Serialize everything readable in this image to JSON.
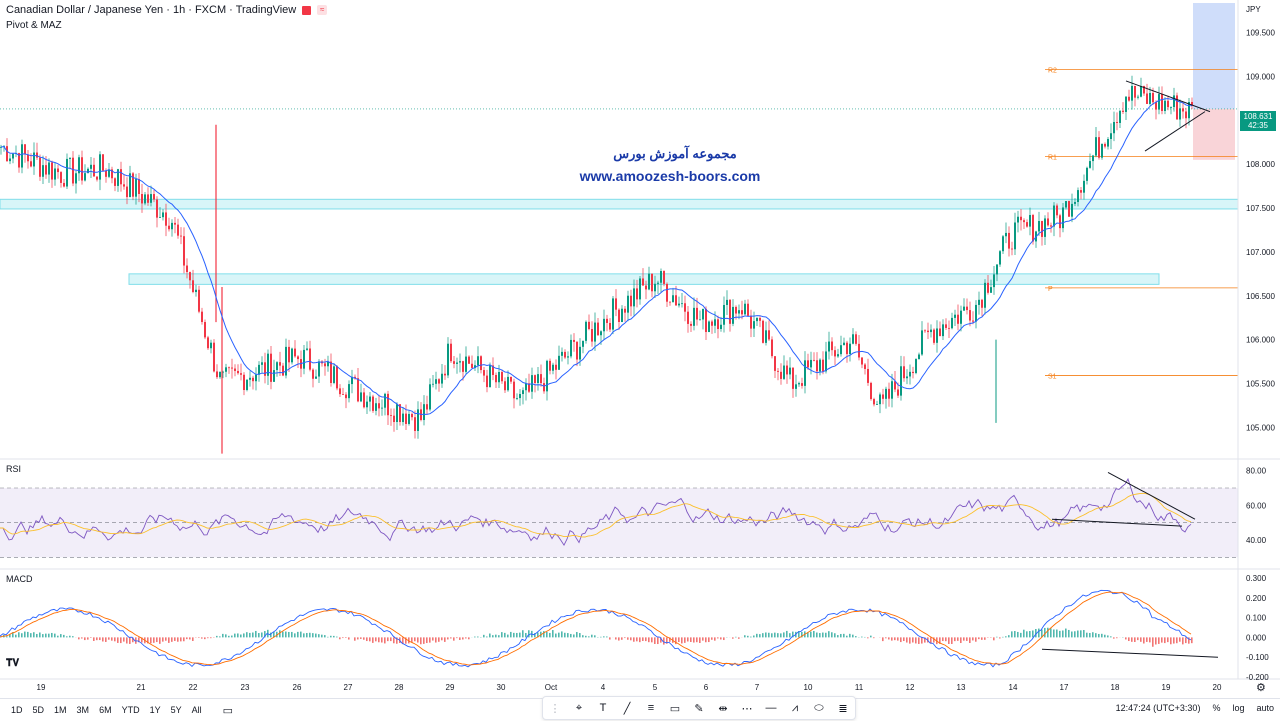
{
  "header": {
    "symbol_title": "Canadian Dollar / Japanese Yen · 1h · FXCM · TradingView",
    "indicator": "Pivot & MAZ",
    "currency": "JPY"
  },
  "price_axis": {
    "ticks": [
      "109.500",
      "109.000",
      "108.000",
      "107.500",
      "107.000",
      "106.500",
      "106.000",
      "105.500",
      "105.000"
    ],
    "current_price": "108.631",
    "countdown": "42:35"
  },
  "pivot_levels": [
    {
      "label": "R2",
      "price": 109.08
    },
    {
      "label": "R1",
      "price": 108.09
    },
    {
      "label": "P",
      "price": 106.59
    },
    {
      "label": "S1",
      "price": 105.59
    }
  ],
  "watermark": {
    "persian": "مجموعه آموزش بورس",
    "url": "www.amoozesh-boors.com"
  },
  "rsi": {
    "label": "RSI",
    "ticks": [
      "80.00",
      "60.00",
      "40.00"
    ]
  },
  "macd": {
    "label": "MACD",
    "ticks": [
      "0.300",
      "0.200",
      "0.100",
      "0.000",
      "-0.100",
      "-0.200"
    ]
  },
  "time_axis": {
    "labels": [
      "19",
      "21",
      "22",
      "23",
      "26",
      "27",
      "28",
      "29",
      "30",
      "Oct",
      "4",
      "5",
      "6",
      "7",
      "10",
      "11",
      "12",
      "13",
      "14",
      "17",
      "18",
      "19",
      "20"
    ]
  },
  "timeframes": [
    "1D",
    "5D",
    "1M",
    "3M",
    "6M",
    "YTD",
    "1Y",
    "5Y",
    "All"
  ],
  "status": {
    "clock": "12:47:24 (UTC+3:30)",
    "percent": "%",
    "log": "log",
    "auto": "auto"
  },
  "tools": [
    "pin-tool",
    "text-tool",
    "trendline-tool",
    "fib-tool",
    "rectangle-tool",
    "pen-tool",
    "measure-tool",
    "pattern-tool",
    "horizontal-line-tool",
    "zigzag-tool",
    "ellipse-tool",
    "channel-tool"
  ],
  "colors": {
    "up": "#089981",
    "down": "#f23645",
    "ma": "#2962ff",
    "rsi_line": "#7e57c2",
    "rsi_ma": "#fbc02d",
    "macd_line": "#2962ff",
    "signal_line": "#ff6d00",
    "pivot": "#f57f17",
    "zone": "#80deea"
  },
  "chart_data": [
    {
      "type": "candlestick",
      "title": "Canadian Dollar / Japanese Yen · 1h · FXCM · TradingView",
      "ylim": [
        104.65,
        109.85
      ],
      "close_points": [
        {
          "x": "Sep 19",
          "y": 108.2
        },
        {
          "x": "Sep 20",
          "y": 107.9
        },
        {
          "x": "Sep 21",
          "y": 107.95
        },
        {
          "x": "Sep 22",
          "y": 107.4
        },
        {
          "x": "Sep 22b",
          "y": 105.5
        },
        {
          "x": "Sep 23",
          "y": 105.6
        },
        {
          "x": "Sep 26",
          "y": 105.8
        },
        {
          "x": "Sep 27",
          "y": 105.4
        },
        {
          "x": "Sep 28",
          "y": 105.1
        },
        {
          "x": "Sep 29",
          "y": 105.9
        },
        {
          "x": "Sep 30",
          "y": 105.3
        },
        {
          "x": "Oct 3",
          "y": 106.2
        },
        {
          "x": "Oct 4",
          "y": 106.7
        },
        {
          "x": "Oct 5",
          "y": 106.2
        },
        {
          "x": "Oct 6",
          "y": 106.4
        },
        {
          "x": "Oct 7",
          "y": 105.5
        },
        {
          "x": "Oct 10",
          "y": 106.0
        },
        {
          "x": "Oct 11",
          "y": 105.2
        },
        {
          "x": "Oct 12",
          "y": 106.1
        },
        {
          "x": "Oct 13",
          "y": 106.4
        },
        {
          "x": "Oct 14",
          "y": 107.2
        },
        {
          "x": "Oct 17",
          "y": 107.4
        },
        {
          "x": "Oct 18",
          "y": 108.8
        },
        {
          "x": "Oct 19",
          "y": 108.6
        }
      ]
    }
  ]
}
